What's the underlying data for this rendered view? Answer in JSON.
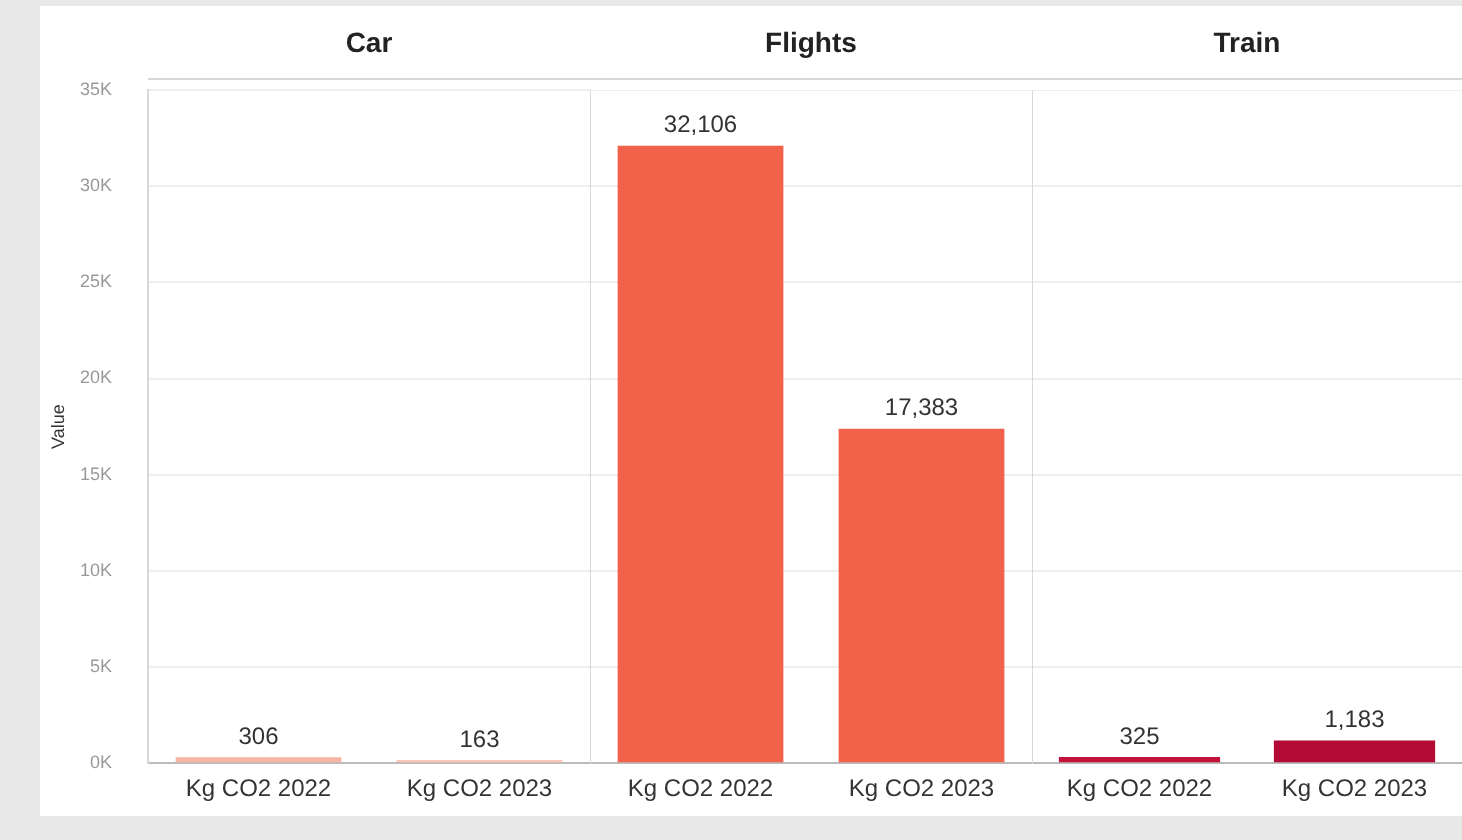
{
  "chart_data": [
    {
      "type": "bar",
      "title": "Car",
      "categories": [
        "Kg CO2 2022",
        "Kg CO2 2023"
      ],
      "values": [
        306,
        163
      ],
      "colors": [
        "#f8b4a4",
        "#fbc6b8"
      ],
      "value_labels": [
        "306",
        "163"
      ],
      "ylabel": "Value",
      "ylim": [
        0,
        35000
      ],
      "yticks": [
        {
          "value": 0,
          "label": "0K"
        },
        {
          "value": 5000,
          "label": "5K"
        },
        {
          "value": 10000,
          "label": "10K"
        },
        {
          "value": 15000,
          "label": "15K"
        },
        {
          "value": 20000,
          "label": "20K"
        },
        {
          "value": 25000,
          "label": "25K"
        },
        {
          "value": 30000,
          "label": "30K"
        },
        {
          "value": 35000,
          "label": "35K"
        }
      ],
      "grid": "y"
    },
    {
      "type": "bar",
      "title": "Flights",
      "categories": [
        "Kg CO2 2022",
        "Kg CO2 2023"
      ],
      "values": [
        32106,
        17383
      ],
      "colors": [
        "#f2614a",
        "#f2614a"
      ],
      "value_labels": [
        "32,106",
        "17,383"
      ],
      "ylim": [
        0,
        35000
      ],
      "yticks": [
        {
          "value": 0,
          "label": null
        },
        {
          "value": 5000,
          "label": null
        },
        {
          "value": 10000,
          "label": null
        },
        {
          "value": 15000,
          "label": null
        },
        {
          "value": 20000,
          "label": null
        },
        {
          "value": 25000,
          "label": null
        },
        {
          "value": 30000,
          "label": null
        },
        {
          "value": 35000,
          "label": null
        }
      ],
      "tick_labels": "x",
      "grid": "y"
    },
    {
      "type": "bar",
      "title": "Train",
      "categories": [
        "Kg CO2 2022",
        "Kg CO2 2023"
      ],
      "values": [
        325,
        1183
      ],
      "colors": [
        "#c2123a",
        "#b40a36"
      ],
      "value_labels": [
        "325",
        "1,183"
      ],
      "ylim": [
        0,
        35000
      ],
      "yticks": [
        {
          "value": 0,
          "label": null
        },
        {
          "value": 5000,
          "label": null
        },
        {
          "value": 10000,
          "label": null
        },
        {
          "value": 15000,
          "label": null
        },
        {
          "value": 20000,
          "label": null
        },
        {
          "value": 25000,
          "label": null
        },
        {
          "value": 30000,
          "label": null
        },
        {
          "value": 35000,
          "label": null
        }
      ],
      "tick_labels": "x",
      "grid": "y"
    }
  ]
}
